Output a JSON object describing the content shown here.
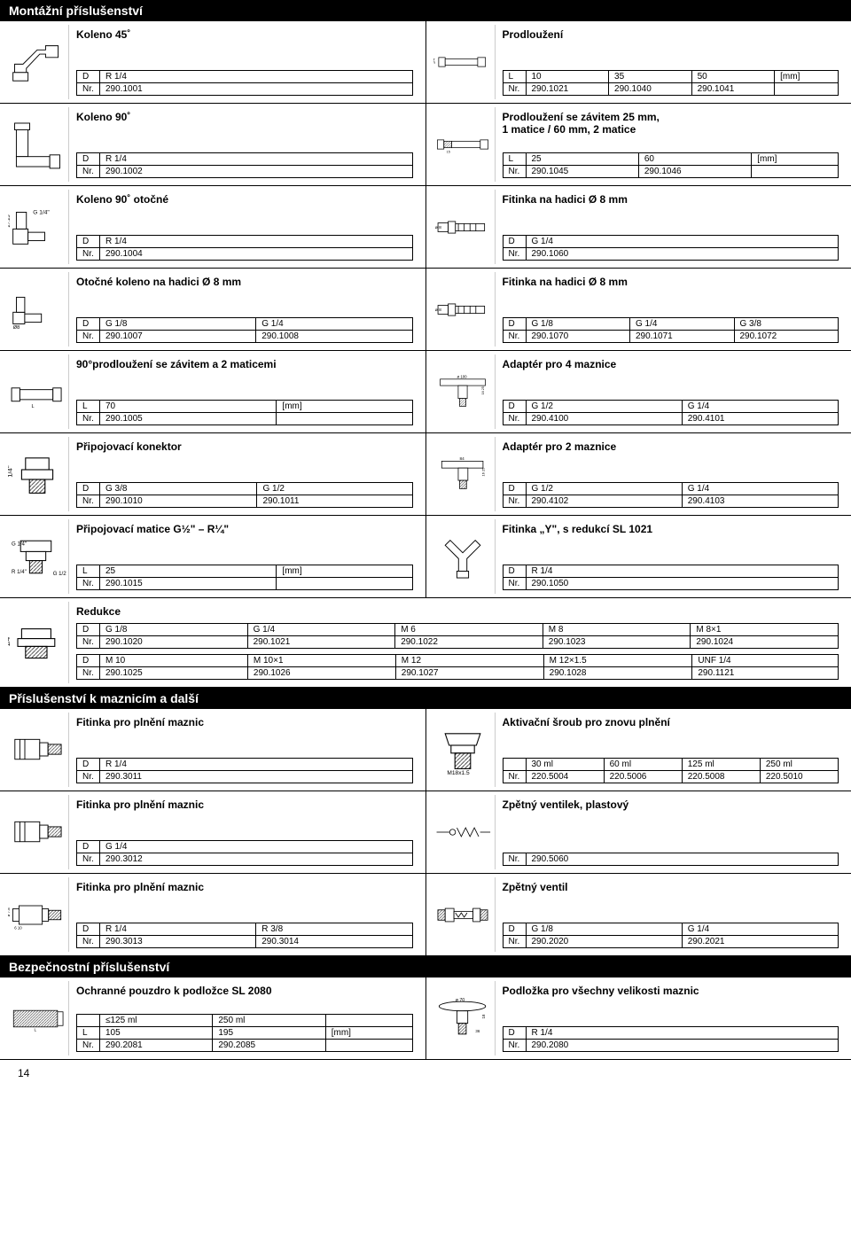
{
  "page_number": "14",
  "sections": [
    {
      "title": "Montážní příslušenství"
    },
    {
      "title": "Příslušenství k maznicím a další"
    },
    {
      "title": "Bezpečnostní příslušenství"
    }
  ],
  "rows": [
    {
      "left": {
        "title": "Koleno 45˚",
        "icon": "elbow45",
        "table": [
          [
            "D",
            "R 1/4"
          ],
          [
            "Nr.",
            "290.1001"
          ]
        ]
      },
      "right": {
        "title": "Prodloužení",
        "icon": "extension",
        "table": [
          [
            "L",
            "10",
            "35",
            "50",
            "[mm]"
          ],
          [
            "Nr.",
            "290.1021",
            "290.1040",
            "290.1041",
            ""
          ]
        ]
      }
    },
    {
      "left": {
        "title": "Koleno 90˚",
        "icon": "elbow90",
        "table": [
          [
            "D",
            "R 1/4"
          ],
          [
            "Nr.",
            "290.1002"
          ]
        ]
      },
      "right": {
        "title": "Prodloužení se závitem 25 mm,\n1 matice / 60 mm, 2 matice",
        "icon": "extension-thread",
        "table": [
          [
            "L",
            "25",
            "60",
            "[mm]"
          ],
          [
            "Nr.",
            "290.1045",
            "290.1046",
            ""
          ]
        ]
      }
    },
    {
      "left": {
        "title": "Koleno 90˚ otočné",
        "icon": "swivel90",
        "table": [
          [
            "D",
            "R 1/4"
          ],
          [
            "Nr.",
            "290.1004"
          ]
        ]
      },
      "right": {
        "title": "Fitinka na hadici Ø 8 mm",
        "icon": "hose-fitting",
        "table": [
          [
            "D",
            "G 1/4"
          ],
          [
            "Nr.",
            "290.1060"
          ]
        ]
      }
    },
    {
      "left": {
        "title": "Otočné koleno na hadici Ø 8 mm",
        "icon": "swivel-hose",
        "table": [
          [
            "D",
            "G 1/8",
            "G 1/4"
          ],
          [
            "Nr.",
            "290.1007",
            "290.1008"
          ]
        ]
      },
      "right": {
        "title": "Fitinka na hadici Ø 8 mm",
        "icon": "hose-fitting",
        "table": [
          [
            "D",
            "G 1/8",
            "G 1/4",
            "G 3/8"
          ],
          [
            "Nr.",
            "290.1070",
            "290.1071",
            "290.1072"
          ]
        ]
      }
    },
    {
      "left": {
        "title": "90°prodloužení se závitem a 2 maticemi",
        "icon": "ext90",
        "table": [
          [
            "L",
            "70",
            "[mm]"
          ],
          [
            "Nr.",
            "290.1005",
            ""
          ]
        ]
      },
      "right": {
        "title": "Adaptér pro 4 maznice",
        "icon": "adapter4",
        "table": [
          [
            "D",
            "G 1/2",
            "G 1/4"
          ],
          [
            "Nr.",
            "290.4100",
            "290.4101"
          ]
        ]
      }
    },
    {
      "left": {
        "title": "Připojovací konektor",
        "icon": "connector",
        "table": [
          [
            "D",
            "G 3/8",
            "G 1/2"
          ],
          [
            "Nr.",
            "290.1010",
            "290.1011"
          ]
        ]
      },
      "right": {
        "title": "Adaptér pro 2 maznice",
        "icon": "adapter2",
        "table": [
          [
            "D",
            "G 1/2",
            "G 1/4"
          ],
          [
            "Nr.",
            "290.4102",
            "290.4103"
          ]
        ]
      }
    },
    {
      "left": {
        "title": "Připojovací matice G½\" – R¼\"",
        "icon": "nut",
        "table": [
          [
            "L",
            "25",
            "[mm]"
          ],
          [
            "Nr.",
            "290.1015",
            ""
          ]
        ]
      },
      "right": {
        "title": "Fitinka „Y\", s redukcí SL 1021",
        "icon": "y-fitting",
        "table": [
          [
            "D",
            "R 1/4"
          ],
          [
            "Nr.",
            "290.1050"
          ]
        ]
      }
    },
    {
      "left": {
        "title": "Redukce",
        "icon": "reducer",
        "fullwidth": true,
        "tables": [
          [
            [
              "D",
              "G 1/8",
              "G 1/4",
              "M 6",
              "M 8",
              "M 8×1"
            ],
            [
              "Nr.",
              "290.1020",
              "290.1021",
              "290.1022",
              "290.1023",
              "290.1024"
            ]
          ],
          [
            [
              "D",
              "M 10",
              "M 10×1",
              "M 12",
              "M 12×1.5",
              "UNF 1/4"
            ],
            [
              "Nr.",
              "290.1025",
              "290.1026",
              "290.1027",
              "290.1028",
              "290.1121"
            ]
          ]
        ]
      }
    },
    {
      "section": 1
    },
    {
      "left": {
        "title": "Fitinka pro plnění maznic",
        "icon": "fill-fitting",
        "table": [
          [
            "D",
            "R 1/4"
          ],
          [
            "Nr.",
            "290.3011"
          ]
        ]
      },
      "right": {
        "title": "Aktivační šroub pro znovu plnění",
        "icon": "screw",
        "table": [
          [
            "",
            "30 ml",
            "60 ml",
            "125 ml",
            "250 ml"
          ],
          [
            "Nr.",
            "220.5004",
            "220.5006",
            "220.5008",
            "220.5010"
          ]
        ]
      }
    },
    {
      "left": {
        "title": "Fitinka pro plnění maznic",
        "icon": "fill-fitting",
        "table": [
          [
            "D",
            "G 1/4"
          ],
          [
            "Nr.",
            "290.3012"
          ]
        ]
      },
      "right": {
        "title": "Zpětný ventilek, plastový",
        "icon": "check-valve",
        "table": [
          [
            "Nr.",
            "290.5060"
          ]
        ]
      }
    },
    {
      "left": {
        "title": "Fitinka pro plnění maznic",
        "icon": "fill-fitting2",
        "table": [
          [
            "D",
            "R 1/4",
            "R 3/8"
          ],
          [
            "Nr.",
            "290.3013",
            "290.3014"
          ]
        ]
      },
      "right": {
        "title": "Zpětný ventil",
        "icon": "check-valve2",
        "table": [
          [
            "D",
            "G 1/8",
            "G 1/4"
          ],
          [
            "Nr.",
            "290.2020",
            "290.2021"
          ]
        ]
      }
    },
    {
      "section": 2
    },
    {
      "left": {
        "title": "Ochranné pouzdro k podložce SL 2080",
        "icon": "sleeve",
        "table": [
          [
            "",
            "≤125 ml",
            "250 ml",
            ""
          ],
          [
            "L",
            "105",
            "195",
            "[mm]"
          ],
          [
            "Nr.",
            "290.2081",
            "290.2085",
            ""
          ]
        ]
      },
      "right": {
        "title": "Podložka pro všechny velikosti maznic",
        "icon": "washer",
        "table": [
          [
            "D",
            "R 1/4"
          ],
          [
            "Nr.",
            "290.2080"
          ]
        ]
      }
    }
  ]
}
